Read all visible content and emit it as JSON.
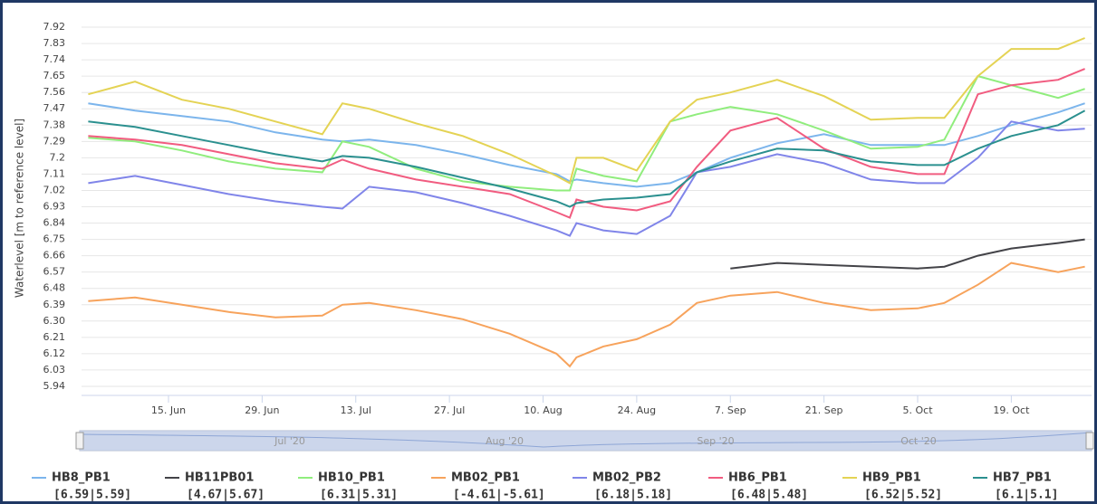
{
  "chart_data": {
    "type": "line",
    "y_label": "Waterlevel [m to reference level]",
    "x": [
      "2020-06-03",
      "2020-06-10",
      "2020-06-17",
      "2020-06-24",
      "2020-07-01",
      "2020-07-08",
      "2020-07-11",
      "2020-07-15",
      "2020-07-22",
      "2020-07-29",
      "2020-08-05",
      "2020-08-12",
      "2020-08-14",
      "2020-08-15",
      "2020-08-19",
      "2020-08-24",
      "2020-08-29",
      "2020-09-02",
      "2020-09-07",
      "2020-09-14",
      "2020-09-21",
      "2020-09-28",
      "2020-10-05",
      "2020-10-09",
      "2020-10-14",
      "2020-10-19",
      "2020-10-26",
      "2020-10-30"
    ],
    "xlim": [
      "2020-06-02",
      "2020-10-31"
    ],
    "xticks": [
      {
        "value": "2020-06-15",
        "label": "15. Jun"
      },
      {
        "value": "2020-06-29",
        "label": "29. Jun"
      },
      {
        "value": "2020-07-13",
        "label": "13. Jul"
      },
      {
        "value": "2020-07-27",
        "label": "27. Jul"
      },
      {
        "value": "2020-08-10",
        "label": "10. Aug"
      },
      {
        "value": "2020-08-24",
        "label": "24. Aug"
      },
      {
        "value": "2020-09-07",
        "label": "7. Sep"
      },
      {
        "value": "2020-09-21",
        "label": "21. Sep"
      },
      {
        "value": "2020-10-05",
        "label": "5. Oct"
      },
      {
        "value": "2020-10-19",
        "label": "19. Oct"
      }
    ],
    "ylim": [
      5.89,
      7.96
    ],
    "yticks": [
      7.92,
      7.83,
      7.74,
      7.65,
      7.56,
      7.47,
      7.38,
      7.29,
      7.2,
      7.11,
      7.02,
      6.93,
      6.84,
      6.75,
      6.66,
      6.57,
      6.48,
      6.39,
      {
        "value": 6.3,
        "label": "6.30"
      },
      6.21,
      6.12,
      6.03,
      5.94
    ],
    "grid": true,
    "navigator_labels": [
      "Jul '20",
      "Aug '20",
      "Sep '20",
      "Oct '20"
    ],
    "series": [
      {
        "name": "HB8_PB1",
        "range_label": "[6.59|5.59]",
        "color": "#7cb5ec",
        "values": [
          7.5,
          7.46,
          7.43,
          7.4,
          7.34,
          7.3,
          7.29,
          7.3,
          7.27,
          7.22,
          7.16,
          7.11,
          7.07,
          7.08,
          7.06,
          7.04,
          7.06,
          7.12,
          7.2,
          7.28,
          7.33,
          7.27,
          7.27,
          7.27,
          7.32,
          7.38,
          7.45,
          7.5
        ]
      },
      {
        "name": "HB11PB01",
        "range_label": "[4.67|5.67]",
        "color": "#434348",
        "values": [
          null,
          null,
          null,
          null,
          null,
          null,
          null,
          null,
          null,
          null,
          null,
          null,
          null,
          null,
          null,
          null,
          null,
          null,
          6.59,
          6.62,
          6.61,
          6.6,
          6.59,
          6.6,
          6.66,
          6.7,
          6.73,
          6.75
        ]
      },
      {
        "name": "HB10_PB1",
        "range_label": "[6.31|5.31]",
        "color": "#90ed7d",
        "values": [
          7.31,
          7.29,
          7.24,
          7.18,
          7.14,
          7.12,
          7.29,
          7.26,
          7.14,
          7.07,
          7.04,
          7.02,
          7.02,
          7.14,
          7.1,
          7.07,
          7.4,
          7.44,
          7.48,
          7.44,
          7.35,
          7.25,
          7.26,
          7.3,
          7.65,
          7.6,
          7.53,
          7.58
        ]
      },
      {
        "name": "MB02_PB1",
        "range_label": "[-4.61|-5.61]",
        "color": "#f7a35c",
        "values": [
          6.41,
          6.43,
          6.39,
          6.35,
          6.32,
          6.33,
          6.39,
          6.4,
          6.36,
          6.31,
          6.23,
          6.12,
          6.05,
          6.1,
          6.16,
          6.2,
          6.28,
          6.4,
          6.44,
          6.46,
          6.4,
          6.36,
          6.37,
          6.4,
          6.5,
          6.62,
          6.57,
          6.6
        ]
      },
      {
        "name": "MB02_PB2",
        "range_label": "[6.18|5.18]",
        "color": "#8085e9",
        "values": [
          7.06,
          7.1,
          7.05,
          7.0,
          6.96,
          6.93,
          6.92,
          7.04,
          7.01,
          6.95,
          6.88,
          6.8,
          6.77,
          6.84,
          6.8,
          6.78,
          6.88,
          7.12,
          7.15,
          7.22,
          7.17,
          7.08,
          7.06,
          7.06,
          7.2,
          7.4,
          7.35,
          7.36
        ]
      },
      {
        "name": "HB6_PB1",
        "range_label": "[6.48|5.48]",
        "color": "#f15c80",
        "values": [
          7.32,
          7.3,
          7.27,
          7.22,
          7.17,
          7.14,
          7.19,
          7.14,
          7.08,
          7.04,
          7.0,
          6.9,
          6.87,
          6.97,
          6.93,
          6.91,
          6.96,
          7.15,
          7.35,
          7.42,
          7.25,
          7.15,
          7.11,
          7.11,
          7.55,
          7.6,
          7.63,
          7.69
        ]
      },
      {
        "name": "HB9_PB1",
        "range_label": "[6.52|5.52]",
        "color": "#e4d354",
        "values": [
          7.55,
          7.62,
          7.52,
          7.47,
          7.4,
          7.33,
          7.5,
          7.47,
          7.39,
          7.32,
          7.22,
          7.1,
          7.06,
          7.2,
          7.2,
          7.13,
          7.4,
          7.52,
          7.56,
          7.63,
          7.54,
          7.41,
          7.42,
          7.42,
          7.65,
          7.8,
          7.8,
          7.86
        ]
      },
      {
        "name": "HB7_PB1",
        "range_label": "[6.1|5.1]",
        "color": "#2b908f",
        "values": [
          7.4,
          7.37,
          7.32,
          7.27,
          7.22,
          7.18,
          7.21,
          7.2,
          7.15,
          7.09,
          7.03,
          6.96,
          6.93,
          6.95,
          6.97,
          6.98,
          7.0,
          7.12,
          7.18,
          7.25,
          7.24,
          7.18,
          7.16,
          7.16,
          7.25,
          7.32,
          7.38,
          7.46
        ]
      }
    ]
  }
}
